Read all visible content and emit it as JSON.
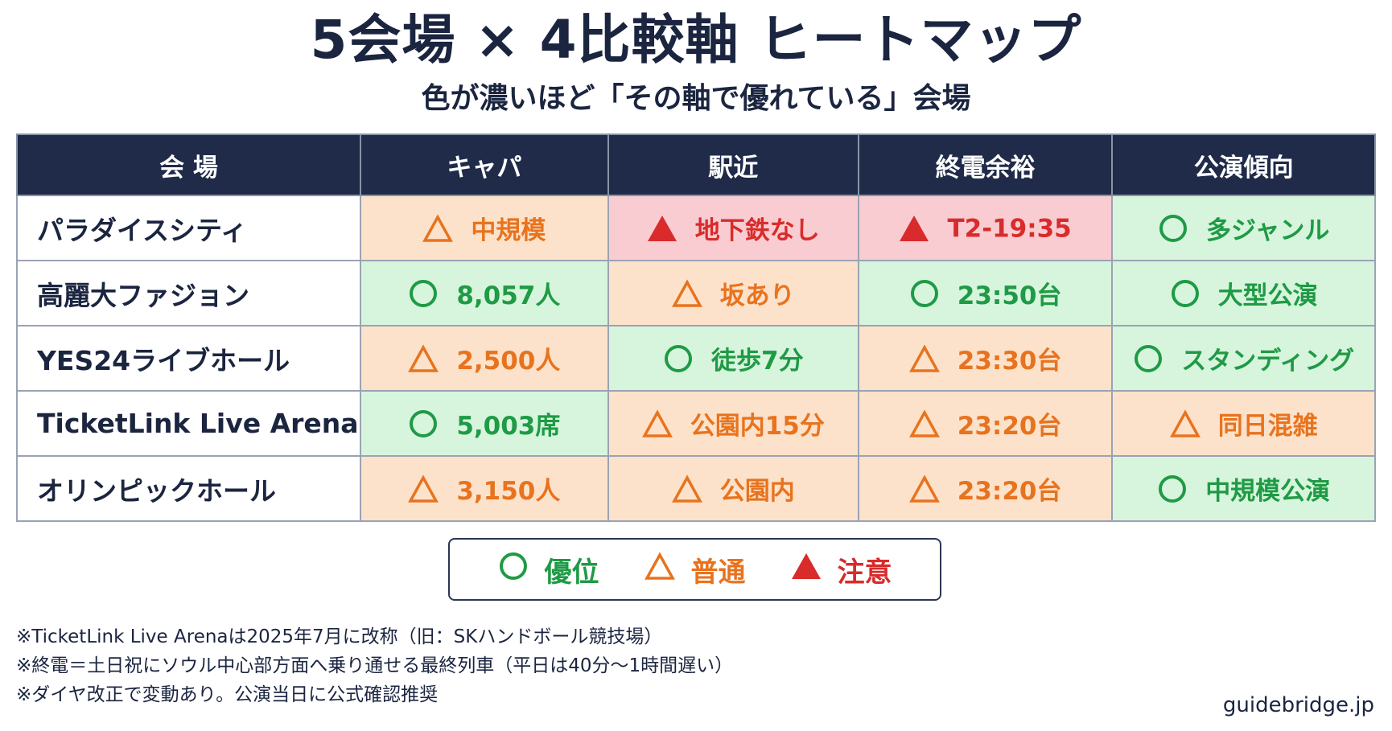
{
  "title": "5会場 × 4比較軸 ヒートマップ",
  "subtitle": "色が濃いほど「その軸で優れている」会場",
  "colors": {
    "header_bg": "#1f2b48",
    "good_bg": "#d7f5dd",
    "good_fg": "#1f9a45",
    "mid_bg": "#fde2cb",
    "mid_fg": "#e8731e",
    "bad_bg": "#f9ccd2",
    "bad_fg": "#d92b2b"
  },
  "headers": [
    "会 場",
    "キャパ",
    "駅近",
    "終電余裕",
    "公演傾向"
  ],
  "rows": [
    {
      "venue": "パラダイスシティ",
      "cells": [
        {
          "rating": "mid",
          "icon": "triangle-outline-icon",
          "text": "中規模"
        },
        {
          "rating": "bad",
          "icon": "triangle-filled-icon",
          "text": "地下鉄なし"
        },
        {
          "rating": "bad",
          "icon": "triangle-filled-icon",
          "text": "T2-19:35"
        },
        {
          "rating": "good",
          "icon": "circle-outline-icon",
          "text": "多ジャンル"
        }
      ]
    },
    {
      "venue": "高麗大ファジョン",
      "cells": [
        {
          "rating": "good",
          "icon": "circle-outline-icon",
          "text": "8,057人"
        },
        {
          "rating": "mid",
          "icon": "triangle-outline-icon",
          "text": "坂あり"
        },
        {
          "rating": "good",
          "icon": "circle-outline-icon",
          "text": "23:50台"
        },
        {
          "rating": "good",
          "icon": "circle-outline-icon",
          "text": "大型公演"
        }
      ]
    },
    {
      "venue": "YES24ライブホール",
      "cells": [
        {
          "rating": "mid",
          "icon": "triangle-outline-icon",
          "text": "2,500人"
        },
        {
          "rating": "good",
          "icon": "circle-outline-icon",
          "text": "徒歩7分"
        },
        {
          "rating": "mid",
          "icon": "triangle-outline-icon",
          "text": "23:30台"
        },
        {
          "rating": "good",
          "icon": "circle-outline-icon",
          "text": "スタンディング"
        }
      ]
    },
    {
      "venue": "TicketLink Live Arena",
      "cells": [
        {
          "rating": "good",
          "icon": "circle-outline-icon",
          "text": "5,003席"
        },
        {
          "rating": "mid",
          "icon": "triangle-outline-icon",
          "text": "公園内15分"
        },
        {
          "rating": "mid",
          "icon": "triangle-outline-icon",
          "text": "23:20台"
        },
        {
          "rating": "mid",
          "icon": "triangle-outline-icon",
          "text": "同日混雑"
        }
      ]
    },
    {
      "venue": "オリンピックホール",
      "cells": [
        {
          "rating": "mid",
          "icon": "triangle-outline-icon",
          "text": "3,150人"
        },
        {
          "rating": "mid",
          "icon": "triangle-outline-icon",
          "text": "公園内"
        },
        {
          "rating": "mid",
          "icon": "triangle-outline-icon",
          "text": "23:20台"
        },
        {
          "rating": "good",
          "icon": "circle-outline-icon",
          "text": "中規模公演"
        }
      ]
    }
  ],
  "legend": [
    {
      "rating": "good",
      "icon": "circle-outline-icon",
      "label": "優位"
    },
    {
      "rating": "mid",
      "icon": "triangle-outline-icon",
      "label": "普通"
    },
    {
      "rating": "bad",
      "icon": "triangle-filled-icon",
      "label": "注意"
    }
  ],
  "notes": [
    "※TicketLink Live Arenaは2025年7月に改称（旧：SKハンドボール競技場）",
    "※終電＝土日祝にソウル中心部方面へ乗り通せる最終列車（平日は40分〜1時間遅い）",
    "※ダイヤ改正で変動あり。公演当日に公式確認推奨"
  ],
  "credit": "guidebridge.jp"
}
